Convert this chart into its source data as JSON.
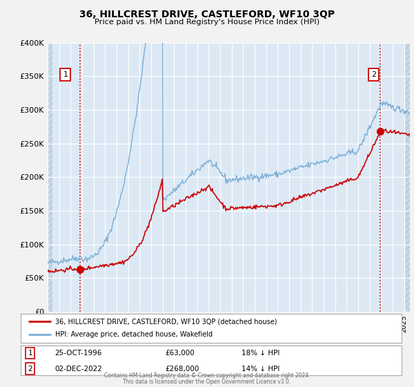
{
  "title": "36, HILLCREST DRIVE, CASTLEFORD, WF10 3QP",
  "subtitle": "Price paid vs. HM Land Registry's House Price Index (HPI)",
  "ylim": [
    0,
    400000
  ],
  "yticks": [
    0,
    50000,
    100000,
    150000,
    200000,
    250000,
    300000,
    350000,
    400000
  ],
  "ytick_labels": [
    "£0",
    "£50K",
    "£100K",
    "£150K",
    "£200K",
    "£250K",
    "£300K",
    "£350K",
    "£400K"
  ],
  "xlim_start": 1994.0,
  "xlim_end": 2025.5,
  "plot_bg_color": "#dce9f5",
  "fig_bg_color": "#f2f2f2",
  "grid_color": "#ffffff",
  "red_line_color": "#cc0000",
  "blue_line_color": "#7aaed6",
  "marker_color": "#cc0000",
  "vline_color": "#cc0000",
  "marker1_x": 1996.82,
  "marker1_y": 63000,
  "marker2_x": 2022.92,
  "marker2_y": 268000,
  "legend_line1": "36, HILLCREST DRIVE, CASTLEFORD, WF10 3QP (detached house)",
  "legend_line2": "HPI: Average price, detached house, Wakefield",
  "table_row1": [
    "1",
    "25-OCT-1996",
    "£63,000",
    "18% ↓ HPI"
  ],
  "table_row2": [
    "2",
    "02-DEC-2022",
    "£268,000",
    "14% ↓ HPI"
  ],
  "footer": "Contains HM Land Registry data © Crown copyright and database right 2024.\nThis data is licensed under the Open Government Licence v3.0."
}
